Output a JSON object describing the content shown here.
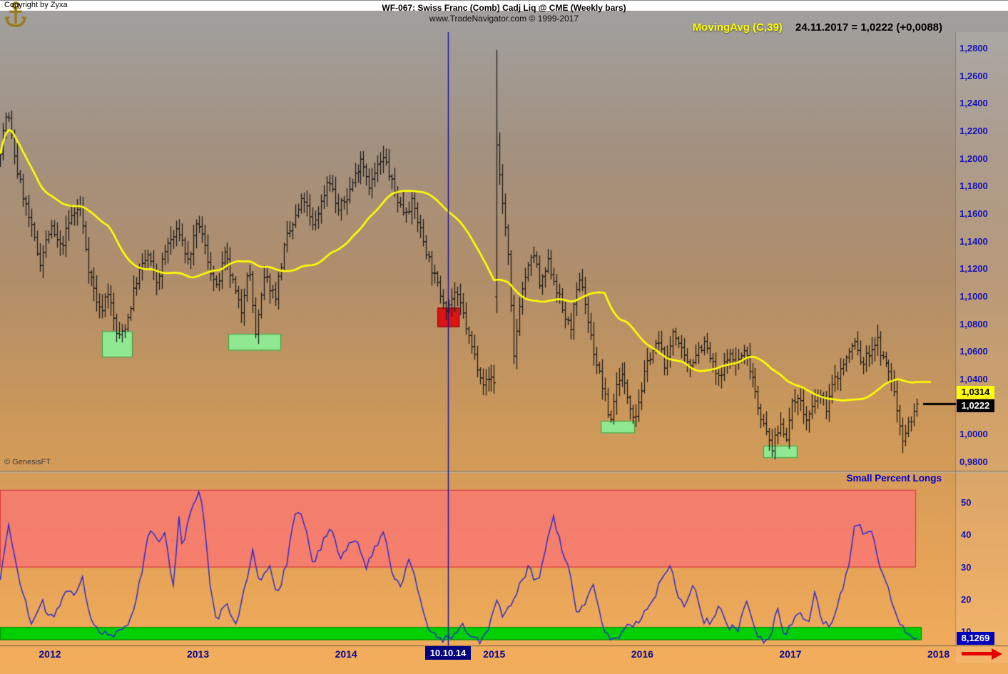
{
  "header": {
    "title": "WF-067:  Swiss Franc (Comb) Cadj Liq @ CME  (Weekly bars)",
    "subtitle": "www.TradeNavigator.com © 1999-2017",
    "indicator_label": "MovingAvg (C,39)",
    "indicator_value": "24.11.2017 = 1,0222 (+0,0088)"
  },
  "price_axis": {
    "labels": [
      "1,2800",
      "1,2600",
      "1,2400",
      "1,2200",
      "1,2000",
      "1,1800",
      "1,1600",
      "1,1400",
      "1,1200",
      "1,1000",
      "1,0800",
      "1,0600",
      "1,0400",
      "1,0000",
      "0,9800"
    ],
    "ma_badge": "1,0314",
    "last_badge": "1,0222"
  },
  "lower_panel": {
    "title": "Small Percent Longs",
    "labels": [
      "50",
      "40",
      "30",
      "20",
      "10"
    ],
    "value_badge": "8,1269"
  },
  "x_axis": {
    "year_labels": [
      "2012",
      "2013",
      "2014",
      "2015",
      "2016",
      "2017",
      "2018"
    ],
    "crosshair_label": "10.10.14"
  },
  "watermark": "© GenesisFT",
  "footer": "Copyright by Zyxa",
  "colors": {
    "bars": "#151515",
    "ma_line": "#ffff00",
    "longs_line": "#2b2bd0",
    "red_zone_fill": "rgba(248,120,112,0.85)",
    "red_zone_border": "#d84040",
    "green_zone_fill": "#00d000",
    "green_zone_border": "#009000",
    "green_box_fill": "#90e890",
    "green_box_border": "#3a9a3a",
    "red_box_fill": "#dd1414",
    "red_box_border": "#8d0000",
    "crosshair": "#1a1a9e",
    "last_price_dash": "#000000"
  },
  "chart_data": {
    "type": "bar",
    "subtype": "ohlc-weekly",
    "title": "Swiss Franc (Comb) Cadj Liq @ CME — Weekly bars",
    "x_years": [
      2011.664,
      2018.1
    ],
    "price_ticks": [
      1.28,
      1.26,
      1.24,
      1.22,
      1.2,
      1.18,
      1.16,
      1.14,
      1.12,
      1.1,
      1.08,
      1.06,
      1.04,
      1.0,
      0.98
    ],
    "ylim": [
      0.975,
      1.295
    ],
    "last_date": "24.11.2017",
    "last_close": 1.0222,
    "last_change": 0.0088,
    "moving_average": {
      "label": "MovingAvg (C,39)",
      "period": 39,
      "last": 1.0314
    },
    "crosshair_year": 2014.69,
    "spike": {
      "year": 2015.018,
      "open": 1.1,
      "high": 1.279,
      "low": 1.088,
      "close": 1.21
    },
    "weekly_close_anchors": [
      [
        2011.66,
        1.205
      ],
      [
        2011.71,
        1.235
      ],
      [
        2011.78,
        1.19
      ],
      [
        2011.86,
        1.155
      ],
      [
        2011.93,
        1.125
      ],
      [
        2012.0,
        1.15
      ],
      [
        2012.07,
        1.135
      ],
      [
        2012.14,
        1.158
      ],
      [
        2012.2,
        1.165
      ],
      [
        2012.26,
        1.12
      ],
      [
        2012.34,
        1.088
      ],
      [
        2012.39,
        1.105
      ],
      [
        2012.46,
        1.068
      ],
      [
        2012.52,
        1.082
      ],
      [
        2012.59,
        1.115
      ],
      [
        2012.66,
        1.13
      ],
      [
        2012.72,
        1.11
      ],
      [
        2012.79,
        1.138
      ],
      [
        2012.87,
        1.148
      ],
      [
        2012.93,
        1.125
      ],
      [
        2013.0,
        1.155
      ],
      [
        2013.06,
        1.128
      ],
      [
        2013.12,
        1.105
      ],
      [
        2013.18,
        1.13
      ],
      [
        2013.23,
        1.112
      ],
      [
        2013.29,
        1.088
      ],
      [
        2013.34,
        1.125
      ],
      [
        2013.39,
        1.072
      ],
      [
        2013.45,
        1.115
      ],
      [
        2013.52,
        1.1
      ],
      [
        2013.59,
        1.14
      ],
      [
        2013.65,
        1.155
      ],
      [
        2013.71,
        1.172
      ],
      [
        2013.77,
        1.15
      ],
      [
        2013.83,
        1.168
      ],
      [
        2013.88,
        1.188
      ],
      [
        2013.94,
        1.162
      ],
      [
        2014.0,
        1.172
      ],
      [
        2014.06,
        1.188
      ],
      [
        2014.1,
        1.202
      ],
      [
        2014.16,
        1.18
      ],
      [
        2014.22,
        1.196
      ],
      [
        2014.26,
        1.2
      ],
      [
        2014.32,
        1.178
      ],
      [
        2014.38,
        1.162
      ],
      [
        2014.45,
        1.168
      ],
      [
        2014.5,
        1.148
      ],
      [
        2014.56,
        1.126
      ],
      [
        2014.62,
        1.106
      ],
      [
        2014.68,
        1.092
      ],
      [
        2014.73,
        1.103
      ],
      [
        2014.78,
        1.09
      ],
      [
        2014.83,
        1.068
      ],
      [
        2014.88,
        1.052
      ],
      [
        2014.93,
        1.036
      ],
      [
        2014.975,
        1.042
      ],
      [
        2015.005,
        1.038
      ],
      [
        2015.018,
        1.21
      ],
      [
        2015.04,
        1.185
      ],
      [
        2015.07,
        1.155
      ],
      [
        2015.1,
        1.122
      ],
      [
        2015.13,
        1.052
      ],
      [
        2015.17,
        1.095
      ],
      [
        2015.21,
        1.115
      ],
      [
        2015.27,
        1.132
      ],
      [
        2015.31,
        1.105
      ],
      [
        2015.36,
        1.125
      ],
      [
        2015.41,
        1.11
      ],
      [
        2015.46,
        1.09
      ],
      [
        2015.51,
        1.076
      ],
      [
        2015.55,
        1.1
      ],
      [
        2015.585,
        1.114
      ],
      [
        2015.64,
        1.076
      ],
      [
        2015.68,
        1.055
      ],
      [
        2015.73,
        1.034
      ],
      [
        2015.78,
        1.008
      ],
      [
        2015.81,
        1.03
      ],
      [
        2015.85,
        1.046
      ],
      [
        2015.9,
        1.028
      ],
      [
        2015.95,
        1.012
      ],
      [
        2016.0,
        1.036
      ],
      [
        2016.05,
        1.058
      ],
      [
        2016.11,
        1.066
      ],
      [
        2016.16,
        1.048
      ],
      [
        2016.21,
        1.078
      ],
      [
        2016.26,
        1.06
      ],
      [
        2016.31,
        1.048
      ],
      [
        2016.37,
        1.062
      ],
      [
        2016.42,
        1.066
      ],
      [
        2016.48,
        1.048
      ],
      [
        2016.52,
        1.038
      ],
      [
        2016.57,
        1.058
      ],
      [
        2016.63,
        1.052
      ],
      [
        2016.69,
        1.06
      ],
      [
        2016.74,
        1.044
      ],
      [
        2016.78,
        1.022
      ],
      [
        2016.83,
        1.002
      ],
      [
        2016.88,
        0.99
      ],
      [
        2016.93,
        1.008
      ],
      [
        2016.98,
        0.998
      ],
      [
        2017.0,
        1.018
      ],
      [
        2017.05,
        1.03
      ],
      [
        2017.1,
        1.01
      ],
      [
        2017.14,
        1.016
      ],
      [
        2017.19,
        1.03
      ],
      [
        2017.24,
        1.02
      ],
      [
        2017.29,
        1.038
      ],
      [
        2017.34,
        1.048
      ],
      [
        2017.39,
        1.058
      ],
      [
        2017.43,
        1.068
      ],
      [
        2017.48,
        1.05
      ],
      [
        2017.53,
        1.06
      ],
      [
        2017.58,
        1.069
      ],
      [
        2017.63,
        1.052
      ],
      [
        2017.68,
        1.042
      ],
      [
        2017.73,
        1.012
      ],
      [
        2017.76,
        0.998
      ],
      [
        2017.8,
        1.008
      ],
      [
        2017.84,
        1.018
      ],
      [
        2017.862,
        1.0222
      ]
    ],
    "annotations": {
      "green_boxes": [
        {
          "x": [
            2012.352,
            2012.559
          ],
          "price": [
            1.056,
            1.075
          ]
        },
        {
          "x": [
            2013.205,
            2013.561
          ],
          "price": [
            1.061,
            1.073
          ]
        },
        {
          "x": [
            2015.72,
            2015.95
          ],
          "price": [
            1.001,
            1.01
          ]
        },
        {
          "x": [
            2016.817,
            2017.048
          ],
          "price": [
            0.983,
            0.992
          ]
        }
      ],
      "red_boxes": [
        {
          "x": [
            2014.617,
            2014.766
          ],
          "price": [
            1.078,
            1.092
          ]
        }
      ]
    },
    "percent_longs": {
      "label": "Small Percent Longs",
      "ticks": [
        50,
        40,
        30,
        20,
        10
      ],
      "range": [
        5,
        58
      ],
      "red_zone": [
        30,
        54
      ],
      "green_zone": [
        7.5,
        11.5
      ],
      "last": 8.1269,
      "anchors": [
        [
          2011.66,
          25
        ],
        [
          2011.72,
          44
        ],
        [
          2011.77,
          30
        ],
        [
          2011.83,
          20
        ],
        [
          2011.88,
          12
        ],
        [
          2011.94,
          20
        ],
        [
          2012.0,
          14
        ],
        [
          2012.06,
          18
        ],
        [
          2012.12,
          24
        ],
        [
          2012.17,
          20
        ],
        [
          2012.22,
          27
        ],
        [
          2012.27,
          15
        ],
        [
          2012.33,
          10
        ],
        [
          2012.41,
          8.5
        ],
        [
          2012.49,
          10
        ],
        [
          2012.55,
          15
        ],
        [
          2012.63,
          30
        ],
        [
          2012.67,
          43
        ],
        [
          2012.72,
          38
        ],
        [
          2012.78,
          42
        ],
        [
          2012.83,
          22
        ],
        [
          2012.87,
          45
        ],
        [
          2012.9,
          35
        ],
        [
          2012.95,
          48
        ],
        [
          2013.01,
          55
        ],
        [
          2013.05,
          40
        ],
        [
          2013.08,
          25
        ],
        [
          2013.13,
          13
        ],
        [
          2013.19,
          20
        ],
        [
          2013.25,
          12
        ],
        [
          2013.31,
          22
        ],
        [
          2013.37,
          35
        ],
        [
          2013.42,
          25
        ],
        [
          2013.48,
          30
        ],
        [
          2013.54,
          22
        ],
        [
          2013.6,
          32
        ],
        [
          2013.66,
          48
        ],
        [
          2013.72,
          44
        ],
        [
          2013.78,
          30
        ],
        [
          2013.84,
          38
        ],
        [
          2013.9,
          42
        ],
        [
          2013.96,
          32
        ],
        [
          2014.01,
          36
        ],
        [
          2014.07,
          40
        ],
        [
          2014.13,
          30
        ],
        [
          2014.19,
          35
        ],
        [
          2014.26,
          42
        ],
        [
          2014.31,
          28
        ],
        [
          2014.37,
          25
        ],
        [
          2014.43,
          32
        ],
        [
          2014.49,
          22
        ],
        [
          2014.55,
          12
        ],
        [
          2014.62,
          8
        ],
        [
          2014.72,
          8
        ],
        [
          2014.79,
          12
        ],
        [
          2014.85,
          8
        ],
        [
          2014.9,
          7
        ],
        [
          2014.96,
          10
        ],
        [
          2015.01,
          20
        ],
        [
          2015.06,
          15
        ],
        [
          2015.12,
          18
        ],
        [
          2015.18,
          25
        ],
        [
          2015.23,
          30
        ],
        [
          2015.29,
          25
        ],
        [
          2015.33,
          32
        ],
        [
          2015.4,
          46
        ],
        [
          2015.46,
          35
        ],
        [
          2015.51,
          28
        ],
        [
          2015.56,
          15
        ],
        [
          2015.62,
          20
        ],
        [
          2015.67,
          24
        ],
        [
          2015.73,
          12
        ],
        [
          2015.79,
          8
        ],
        [
          2015.86,
          9
        ],
        [
          2015.91,
          13
        ],
        [
          2015.97,
          12
        ],
        [
          2016.02,
          16
        ],
        [
          2016.09,
          22
        ],
        [
          2016.19,
          32
        ],
        [
          2016.24,
          22
        ],
        [
          2016.29,
          18
        ],
        [
          2016.35,
          26
        ],
        [
          2016.41,
          14
        ],
        [
          2016.46,
          12
        ],
        [
          2016.52,
          18
        ],
        [
          2016.58,
          12
        ],
        [
          2016.64,
          10
        ],
        [
          2016.7,
          20
        ],
        [
          2016.75,
          12
        ],
        [
          2016.79,
          8
        ],
        [
          2016.86,
          7
        ],
        [
          2016.91,
          17
        ],
        [
          2016.95,
          9
        ],
        [
          2017.0,
          12
        ],
        [
          2017.06,
          16
        ],
        [
          2017.12,
          12
        ],
        [
          2017.17,
          24
        ],
        [
          2017.21,
          14
        ],
        [
          2017.28,
          12
        ],
        [
          2017.33,
          20
        ],
        [
          2017.39,
          30
        ],
        [
          2017.44,
          45
        ],
        [
          2017.49,
          40
        ],
        [
          2017.55,
          42
        ],
        [
          2017.61,
          30
        ],
        [
          2017.67,
          22
        ],
        [
          2017.72,
          15
        ],
        [
          2017.77,
          10
        ],
        [
          2017.83,
          8.5
        ],
        [
          2017.862,
          8.13
        ]
      ]
    }
  }
}
